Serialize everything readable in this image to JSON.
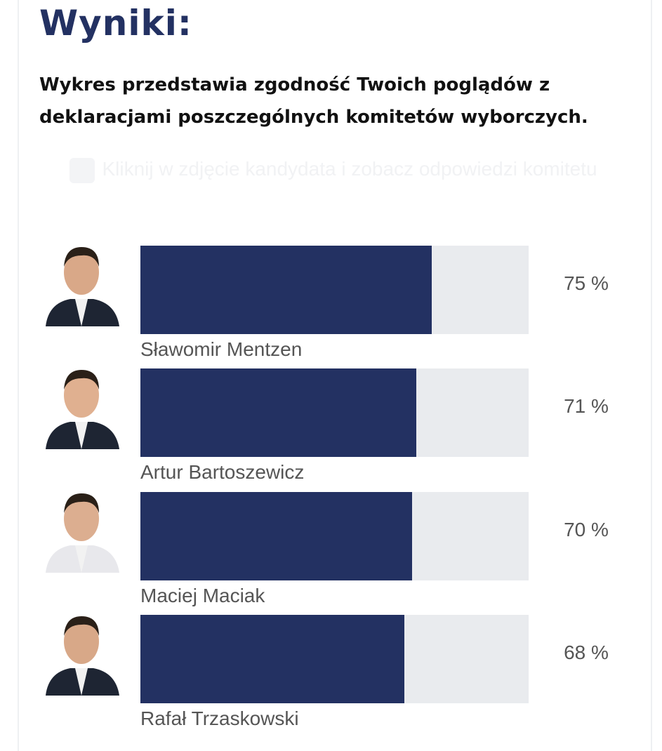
{
  "header": {
    "title": "Wyniki:",
    "subtitle": "Wykres przedstawia zgodność Twoich poglądów z deklaracjami poszczególnych komitetów wyborczych.",
    "hint": "Kliknij w zdjęcie kandydata i zobacz odpowiedzi komitetu",
    "hint_icon": "pointer-hand-icon"
  },
  "colors": {
    "bar_fill": "#233162",
    "bar_track": "#e9ebee",
    "title": "#233162"
  },
  "chart_data": {
    "type": "bar",
    "orientation": "horizontal",
    "categories": [
      "Sławomir Mentzen",
      "Artur Bartoszewicz",
      "Maciej Maciak",
      "Rafał Trzaskowski"
    ],
    "values": [
      75,
      71,
      70,
      68
    ],
    "value_labels": [
      "75 %",
      "71 %",
      "70 %",
      "68 %"
    ],
    "xlim": [
      0,
      100
    ],
    "grid": false
  }
}
